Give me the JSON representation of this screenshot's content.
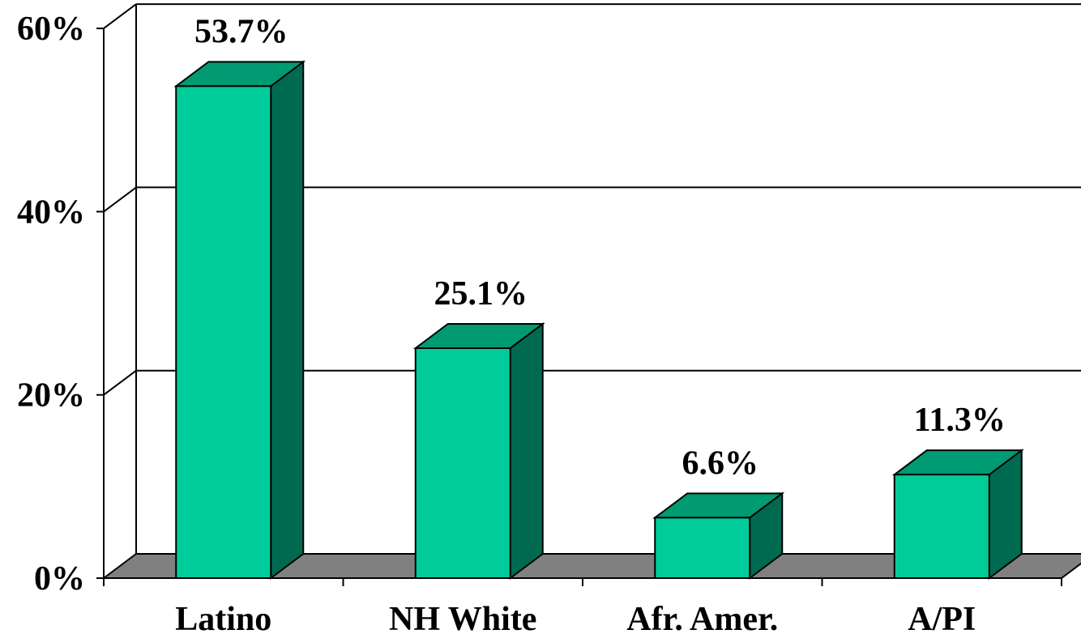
{
  "chart_data": {
    "type": "bar",
    "style": "3d-column",
    "categories": [
      "Latino",
      "NH White",
      "Afr. Amer.",
      "A/PI"
    ],
    "values": [
      53.7,
      25.1,
      6.6,
      11.3
    ],
    "value_labels": [
      "53.7%",
      "25.1%",
      "6.6%",
      "11.3%"
    ],
    "ylim": [
      0,
      60
    ],
    "yticks": [
      0,
      20,
      40,
      60
    ],
    "ytick_labels": [
      "0%",
      "20%",
      "40%",
      "60%"
    ],
    "grid": true,
    "legend": "none",
    "colors": {
      "bar_front": "#00cc99",
      "bar_top": "#009a73",
      "bar_side": "#006a50",
      "floor": "#808080"
    }
  }
}
